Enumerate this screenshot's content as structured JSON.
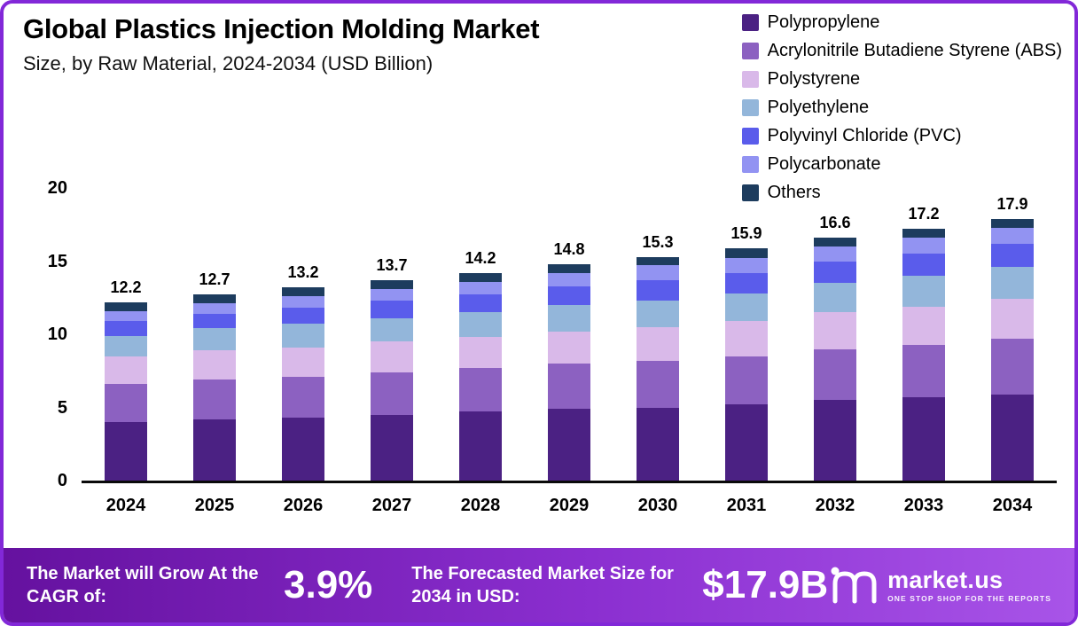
{
  "header": {
    "title": "Global Plastics Injection Molding Market",
    "subtitle": "Size, by Raw Material, 2024-2034 (USD Billion)"
  },
  "colors": {
    "frame_border": "#8228d8",
    "footer_gradient_left": "#65119f",
    "footer_gradient_right": "#a854e8",
    "axis_line": "#0a0a0a"
  },
  "chart_data": {
    "type": "bar",
    "stacked": true,
    "title": "Global Plastics Injection Molding Market Size, by Raw Material, 2024-2034 (USD Billion)",
    "xlabel": "",
    "ylabel": "USD Billion",
    "ylim": [
      0,
      20
    ],
    "yticks": [
      0,
      5,
      10,
      15,
      20
    ],
    "grid": false,
    "legend_position": "top-right",
    "categories": [
      "2024",
      "2025",
      "2026",
      "2027",
      "2028",
      "2029",
      "2030",
      "2031",
      "2032",
      "2033",
      "2034"
    ],
    "totals": [
      "12.2",
      "12.7",
      "13.2",
      "13.7",
      "14.2",
      "14.8",
      "15.3",
      "15.9",
      "16.6",
      "17.2",
      "17.9"
    ],
    "series": [
      {
        "name": "Polypropylene",
        "color": "#4b2183",
        "values": [
          4.0,
          4.2,
          4.3,
          4.5,
          4.7,
          4.9,
          5.0,
          5.2,
          5.5,
          5.7,
          5.9
        ]
      },
      {
        "name": "Acrylonitrile Butadiene Styrene (ABS)",
        "color": "#8c61c1",
        "values": [
          2.6,
          2.7,
          2.8,
          2.9,
          3.0,
          3.1,
          3.2,
          3.3,
          3.5,
          3.6,
          3.8
        ]
      },
      {
        "name": "Polystyrene",
        "color": "#d9b9e9",
        "values": [
          1.9,
          2.0,
          2.0,
          2.1,
          2.1,
          2.2,
          2.3,
          2.4,
          2.5,
          2.6,
          2.7
        ]
      },
      {
        "name": "Polyethylene",
        "color": "#93b6da",
        "values": [
          1.4,
          1.5,
          1.6,
          1.6,
          1.7,
          1.8,
          1.8,
          1.9,
          2.0,
          2.1,
          2.2
        ]
      },
      {
        "name": "Polyvinyl Chloride (PVC)",
        "color": "#5a5ceb",
        "values": [
          1.0,
          1.0,
          1.1,
          1.2,
          1.2,
          1.3,
          1.4,
          1.4,
          1.5,
          1.5,
          1.6
        ]
      },
      {
        "name": "Polycarbonate",
        "color": "#9293f2",
        "values": [
          0.7,
          0.7,
          0.8,
          0.8,
          0.9,
          0.9,
          1.0,
          1.0,
          1.0,
          1.1,
          1.1
        ]
      },
      {
        "name": "Others",
        "color": "#1d3c5e",
        "values": [
          0.6,
          0.6,
          0.6,
          0.6,
          0.6,
          0.6,
          0.6,
          0.7,
          0.6,
          0.6,
          0.6
        ]
      }
    ]
  },
  "footer": {
    "cagr_label": "The Market will Grow At the CAGR of:",
    "cagr_value": "3.9%",
    "forecast_label": "The Forecasted Market Size for 2034 in USD:",
    "forecast_value": "$17.9B",
    "brand_name": "market.us",
    "brand_tagline": "One Stop Shop For The Reports"
  }
}
